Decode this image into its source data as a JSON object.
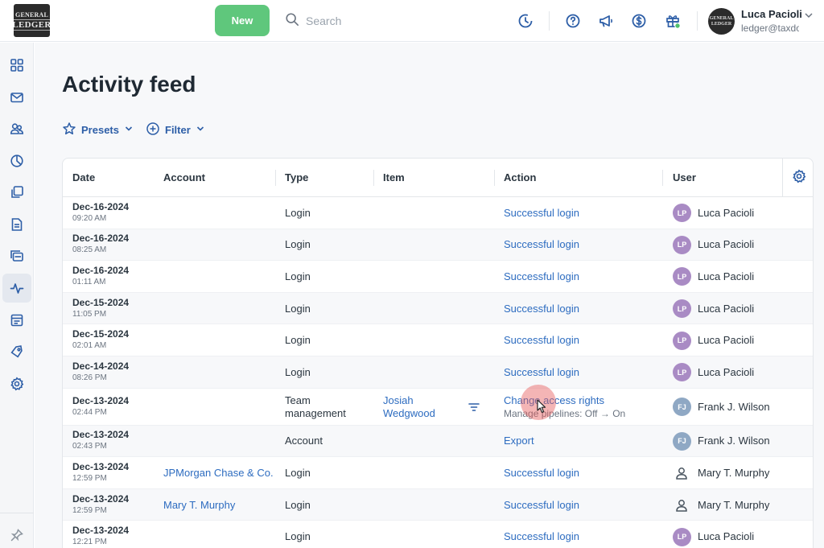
{
  "brand": {
    "logo_line1": "GENERAL",
    "logo_line2": "LEDGER"
  },
  "topbar": {
    "new_label": "New",
    "search_placeholder": "Search",
    "icons": [
      "history-icon",
      "help-icon",
      "megaphone-icon",
      "dollar-icon",
      "gift-icon"
    ]
  },
  "user": {
    "name": "Luca Pacioli",
    "email": "ledger@taxdome.com",
    "avatar_text": "GENERAL LEDGER"
  },
  "sidebar": {
    "items": [
      "dashboard-icon",
      "inbox-icon",
      "clients-icon",
      "insights-icon",
      "documents-icon",
      "billing-icon",
      "pipelines-icon",
      "activity-icon",
      "services-icon",
      "marketplace-icon",
      "settings-icon"
    ],
    "active": "activity-icon"
  },
  "page": {
    "title": "Activity feed",
    "presets_label": "Presets",
    "filter_label": "Filter"
  },
  "table": {
    "columns": {
      "date": "Date",
      "account": "Account",
      "type": "Type",
      "item": "Item",
      "action": "Action",
      "user": "User"
    },
    "rows": [
      {
        "date": "Dec-16-2024",
        "time": "09:20 AM",
        "account": "",
        "type": "Login",
        "type2": "",
        "item": "",
        "item2": "",
        "action": "Successful login",
        "action_detail": "",
        "user": "Luca Pacioli",
        "initials": "LP",
        "avatar_color": "#a98bc4"
      },
      {
        "date": "Dec-16-2024",
        "time": "08:25 AM",
        "account": "",
        "type": "Login",
        "type2": "",
        "item": "",
        "item2": "",
        "action": "Successful login",
        "action_detail": "",
        "user": "Luca Pacioli",
        "initials": "LP",
        "avatar_color": "#a98bc4"
      },
      {
        "date": "Dec-16-2024",
        "time": "01:11 AM",
        "account": "",
        "type": "Login",
        "type2": "",
        "item": "",
        "item2": "",
        "action": "Successful login",
        "action_detail": "",
        "user": "Luca Pacioli",
        "initials": "LP",
        "avatar_color": "#a98bc4"
      },
      {
        "date": "Dec-15-2024",
        "time": "11:05 PM",
        "account": "",
        "type": "Login",
        "type2": "",
        "item": "",
        "item2": "",
        "action": "Successful login",
        "action_detail": "",
        "user": "Luca Pacioli",
        "initials": "LP",
        "avatar_color": "#a98bc4"
      },
      {
        "date": "Dec-15-2024",
        "time": "02:01 AM",
        "account": "",
        "type": "Login",
        "type2": "",
        "item": "",
        "item2": "",
        "action": "Successful login",
        "action_detail": "",
        "user": "Luca Pacioli",
        "initials": "LP",
        "avatar_color": "#a98bc4"
      },
      {
        "date": "Dec-14-2024",
        "time": "08:26 PM",
        "account": "",
        "type": "Login",
        "type2": "",
        "item": "",
        "item2": "",
        "action": "Successful login",
        "action_detail": "",
        "user": "Luca Pacioli",
        "initials": "LP",
        "avatar_color": "#a98bc4"
      },
      {
        "date": "Dec-13-2024",
        "time": "02:44 PM",
        "account": "",
        "type": "Team",
        "type2": "management",
        "item": "Josiah",
        "item2": "Wedgwood",
        "action": "Change access rights",
        "action_detail": "Manage pipelines: Off → On",
        "user": "Frank J. Wilson",
        "initials": "FJ",
        "avatar_color": "#8fa8c4"
      },
      {
        "date": "Dec-13-2024",
        "time": "02:43 PM",
        "account": "",
        "type": "Account",
        "type2": "",
        "item": "",
        "item2": "",
        "action": "Export",
        "action_detail": "",
        "user": "Frank J. Wilson",
        "initials": "FJ",
        "avatar_color": "#8fa8c4"
      },
      {
        "date": "Dec-13-2024",
        "time": "12:59 PM",
        "account": "JPMorgan Chase & Co.",
        "type": "Login",
        "type2": "",
        "item": "",
        "item2": "",
        "action": "Successful login",
        "action_detail": "",
        "user": "Mary T. Murphy",
        "initials": "",
        "avatar_color": ""
      },
      {
        "date": "Dec-13-2024",
        "time": "12:59 PM",
        "account": "Mary T. Murphy",
        "type": "Login",
        "type2": "",
        "item": "",
        "item2": "",
        "action": "Successful login",
        "action_detail": "",
        "user": "Mary T. Murphy",
        "initials": "",
        "avatar_color": ""
      },
      {
        "date": "Dec-13-2024",
        "time": "12:21 PM",
        "account": "",
        "type": "Login",
        "type2": "",
        "item": "",
        "item2": "",
        "action": "Successful login",
        "action_detail": "",
        "user": "Luca Pacioli",
        "initials": "LP",
        "avatar_color": "#a98bc4"
      }
    ]
  },
  "colors": {
    "accent": "#2d6cc0",
    "new_button": "#5fc77c",
    "brand_dark": "#2b2b2b"
  }
}
